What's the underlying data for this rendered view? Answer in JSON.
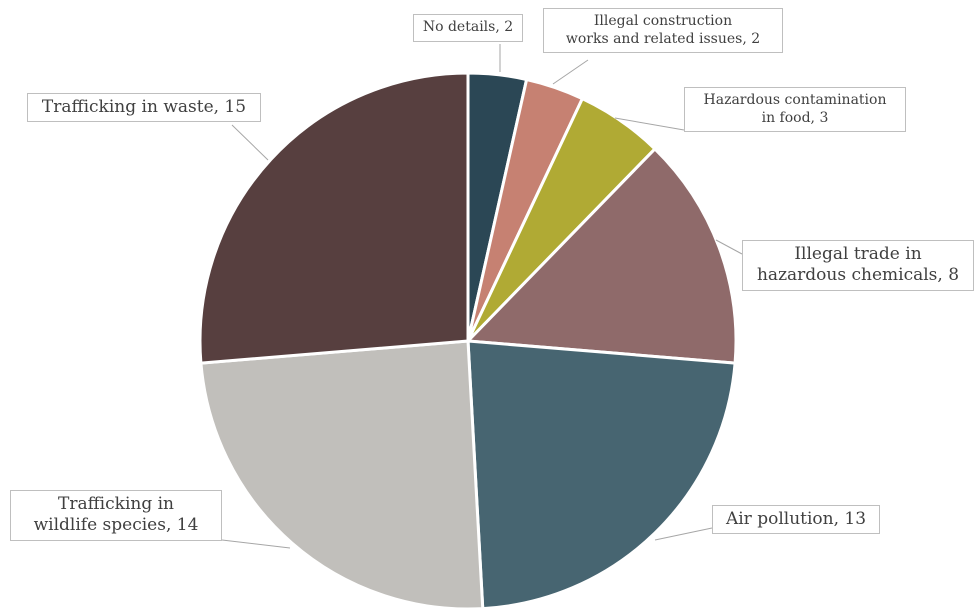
{
  "chart_data": {
    "type": "pie",
    "slices": [
      {
        "label_lines": [
          "No details, 2"
        ],
        "value": 2,
        "color": "#2b4755"
      },
      {
        "label_lines": [
          "Illegal  construction",
          "works and related  issues, 2"
        ],
        "value": 2,
        "color": "#c68172"
      },
      {
        "label_lines": [
          "Hazardous contamination",
          "in food, 3"
        ],
        "value": 3,
        "color": "#b0aa34"
      },
      {
        "label_lines": [
          "Illegal trade in",
          "hazardous chemicals, 8"
        ],
        "value": 8,
        "color": "#8f6a6a"
      },
      {
        "label_lines": [
          "Air pollution, 13"
        ],
        "value": 13,
        "color": "#476571"
      },
      {
        "label_lines": [
          "Trafficking in",
          "wildlife species, 14"
        ],
        "value": 14,
        "color": "#c1bfbb"
      },
      {
        "label_lines": [
          "Trafficking in waste, 15"
        ],
        "value": 15,
        "color": "#573f3f"
      }
    ]
  }
}
